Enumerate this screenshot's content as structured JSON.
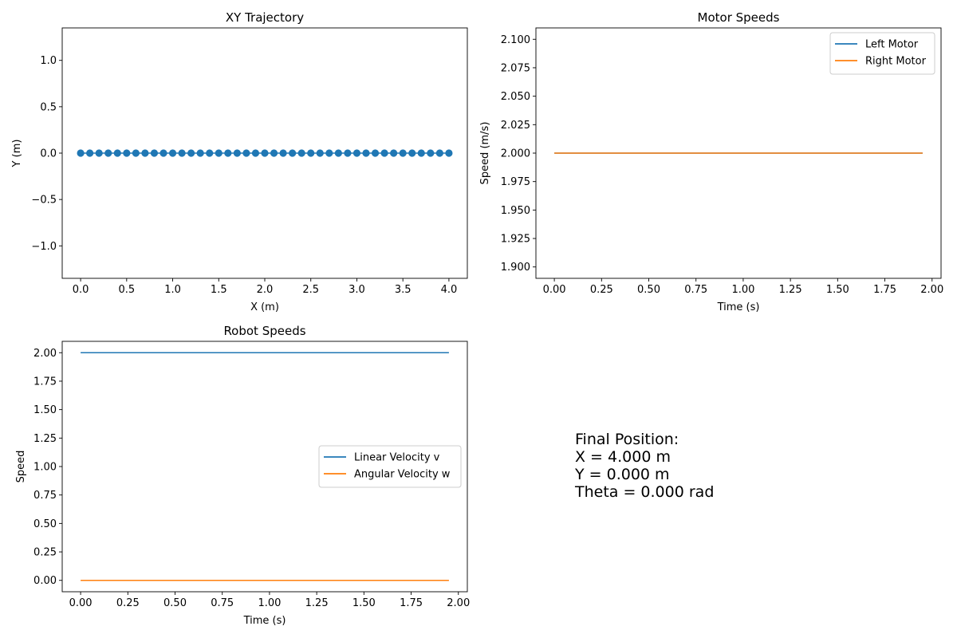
{
  "chart_data": [
    {
      "id": "trajectory",
      "type": "scatter",
      "title": "XY Trajectory",
      "xlabel": "X (m)",
      "ylabel": "Y (m)",
      "xlim": [
        -0.2,
        4.2
      ],
      "ylim": [
        -1.35,
        1.35
      ],
      "xticks": [
        0.0,
        0.5,
        1.0,
        1.5,
        2.0,
        2.5,
        3.0,
        3.5,
        4.0
      ],
      "xtick_labels": [
        "0.0",
        "0.5",
        "1.0",
        "1.5",
        "2.0",
        "2.5",
        "3.0",
        "3.5",
        "4.0"
      ],
      "yticks": [
        -1.0,
        -0.5,
        0.0,
        0.5,
        1.0
      ],
      "ytick_labels": [
        "−1.0",
        "−0.5",
        "0.0",
        "0.5",
        "1.0"
      ],
      "grid": false,
      "series": [
        {
          "color": "#1f77b4",
          "x": [
            0.0,
            0.1,
            0.2,
            0.3,
            0.4,
            0.5,
            0.6,
            0.7,
            0.8,
            0.9,
            1.0,
            1.1,
            1.2,
            1.3,
            1.4,
            1.5,
            1.6,
            1.7,
            1.8,
            1.9,
            2.0,
            2.1,
            2.2,
            2.3,
            2.4,
            2.5,
            2.6,
            2.7,
            2.8,
            2.9,
            3.0,
            3.1,
            3.2,
            3.3,
            3.4,
            3.5,
            3.6,
            3.7,
            3.8,
            3.9,
            4.0
          ],
          "y": [
            0,
            0,
            0,
            0,
            0,
            0,
            0,
            0,
            0,
            0,
            0,
            0,
            0,
            0,
            0,
            0,
            0,
            0,
            0,
            0,
            0,
            0,
            0,
            0,
            0,
            0,
            0,
            0,
            0,
            0,
            0,
            0,
            0,
            0,
            0,
            0,
            0,
            0,
            0,
            0,
            0
          ],
          "line": true,
          "marker": "circle"
        }
      ]
    },
    {
      "id": "motor",
      "type": "line",
      "title": "Motor Speeds",
      "xlabel": "Time (s)",
      "ylabel": "Speed (m/s)",
      "xlim": [
        -0.0975,
        2.0475
      ],
      "ylim": [
        1.89,
        2.11
      ],
      "xticks": [
        0.0,
        0.25,
        0.5,
        0.75,
        1.0,
        1.25,
        1.5,
        1.75,
        2.0
      ],
      "xtick_labels": [
        "0.00",
        "0.25",
        "0.50",
        "0.75",
        "1.00",
        "1.25",
        "1.50",
        "1.75",
        "2.00"
      ],
      "yticks": [
        1.9,
        1.925,
        1.95,
        1.975,
        2.0,
        2.025,
        2.05,
        2.075,
        2.1
      ],
      "ytick_labels": [
        "1.900",
        "1.925",
        "1.950",
        "1.975",
        "2.000",
        "2.025",
        "2.050",
        "2.075",
        "2.100"
      ],
      "grid": false,
      "legend": "top-right",
      "series": [
        {
          "name": "Left Motor",
          "color": "#1f77b4",
          "x": [
            0.0,
            1.95
          ],
          "y": [
            2.0,
            2.0
          ]
        },
        {
          "name": "Right Motor",
          "color": "#ff7f0e",
          "x": [
            0.0,
            1.95
          ],
          "y": [
            2.0,
            2.0
          ]
        }
      ]
    },
    {
      "id": "robot",
      "type": "line",
      "title": "Robot Speeds",
      "xlabel": "Time (s)",
      "ylabel": "Speed",
      "xlim": [
        -0.0975,
        2.0475
      ],
      "ylim": [
        -0.1,
        2.1
      ],
      "xticks": [
        0.0,
        0.25,
        0.5,
        0.75,
        1.0,
        1.25,
        1.5,
        1.75,
        2.0
      ],
      "xtick_labels": [
        "0.00",
        "0.25",
        "0.50",
        "0.75",
        "1.00",
        "1.25",
        "1.50",
        "1.75",
        "2.00"
      ],
      "yticks": [
        0.0,
        0.25,
        0.5,
        0.75,
        1.0,
        1.25,
        1.5,
        1.75,
        2.0
      ],
      "ytick_labels": [
        "0.00",
        "0.25",
        "0.50",
        "0.75",
        "1.00",
        "1.25",
        "1.50",
        "1.75",
        "2.00"
      ],
      "grid": false,
      "legend": "center-right",
      "series": [
        {
          "name": "Linear Velocity v",
          "color": "#1f77b4",
          "x": [
            0.0,
            1.95
          ],
          "y": [
            2.0,
            2.0
          ]
        },
        {
          "name": "Angular Velocity w",
          "color": "#ff7f0e",
          "x": [
            0.0,
            1.95
          ],
          "y": [
            0.0,
            0.0
          ]
        }
      ]
    }
  ],
  "final_position": {
    "lines": [
      "Final Position:",
      "X = 4.000 m",
      "Y = 0.000 m",
      "Theta = 0.000 rad"
    ]
  }
}
